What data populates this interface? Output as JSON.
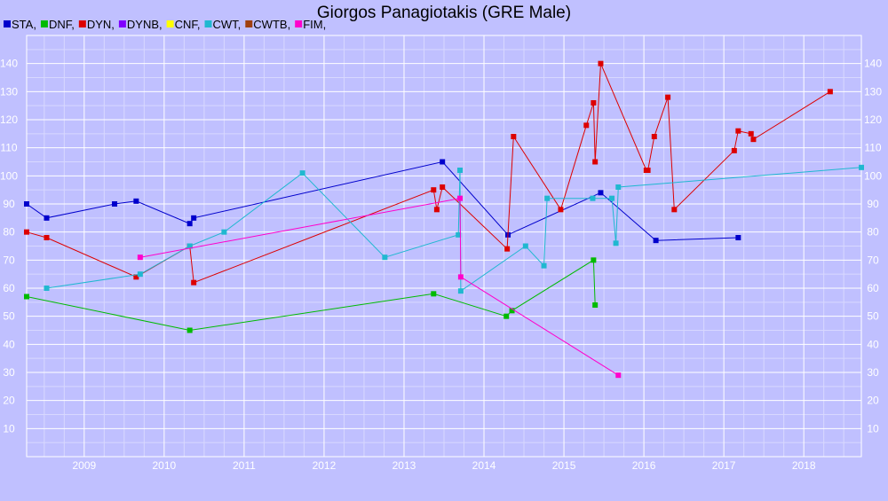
{
  "chart_data": {
    "type": "line",
    "title": "Giorgos Panagiotakis (GRE Male)",
    "xlabel": "",
    "ylabel": "",
    "xlim": [
      2008.28,
      2018.72
    ],
    "ylim": [
      0,
      150
    ],
    "x_ticks": [
      "2009",
      "2010",
      "2011",
      "2012",
      "2013",
      "2014",
      "2015",
      "2016",
      "2017",
      "2018"
    ],
    "y_ticks": [
      "10",
      "20",
      "30",
      "40",
      "50",
      "60",
      "70",
      "80",
      "90",
      "100",
      "110",
      "120",
      "130",
      "140"
    ],
    "grid": true,
    "legend_position": "top-left",
    "background": "#c0c0ff",
    "series": [
      {
        "name": "STA,",
        "color": "#0000cc",
        "x": [
          2008.28,
          2008.53,
          2009.38,
          2009.65,
          2010.32,
          2010.37,
          2013.48,
          2014.3,
          2015.46,
          2016.15,
          2017.18
        ],
        "y": [
          90,
          85,
          90,
          91,
          83,
          85,
          105,
          79,
          94,
          77,
          78
        ]
      },
      {
        "name": "DNF,",
        "color": "#00bb00",
        "x": [
          2008.28,
          2010.32,
          2013.37,
          2014.28,
          2014.35,
          2015.37,
          2015.39
        ],
        "y": [
          57,
          45,
          58,
          50,
          52,
          70,
          54
        ]
      },
      {
        "name": "DYN,",
        "color": "#dd0000",
        "x": [
          2008.28,
          2008.53,
          2009.65,
          2010.32,
          2010.37,
          2013.37,
          2013.41,
          2013.48,
          2014.29,
          2014.37,
          2014.96,
          2015.28,
          2015.37,
          2015.39,
          2015.46,
          2016.03,
          2016.05,
          2016.13,
          2016.3,
          2016.38,
          2017.13,
          2017.18,
          2017.34,
          2017.37,
          2018.33
        ],
        "y": [
          80,
          78,
          64,
          75,
          62,
          95,
          88,
          96,
          74,
          114,
          88,
          118,
          126,
          105,
          140,
          102,
          102,
          114,
          128,
          88,
          109,
          116,
          115,
          113,
          130
        ]
      },
      {
        "name": "DYNB,",
        "color": "#8000ff",
        "x": [],
        "y": []
      },
      {
        "name": "CNF,",
        "color": "#ffff00",
        "x": [],
        "y": []
      },
      {
        "name": "CWT,",
        "color": "#20b8d0",
        "x": [
          2008.53,
          2009.7,
          2010.32,
          2010.75,
          2011.73,
          2012.76,
          2013.68,
          2013.7,
          2013.71,
          2014.52,
          2014.75,
          2014.79,
          2015.36,
          2015.6,
          2015.65,
          2015.68,
          2018.72
        ],
        "y": [
          60,
          65,
          75,
          80,
          101,
          71,
          79,
          102,
          59,
          75,
          68,
          92,
          92,
          92,
          76,
          96,
          103
        ]
      },
      {
        "name": "CWTB,",
        "color": "#a04010",
        "x": [],
        "y": []
      },
      {
        "name": "FIM,",
        "color": "#ff00cc",
        "x": [
          2009.7,
          2013.7,
          2013.71,
          2015.68
        ],
        "y": [
          71,
          92,
          64,
          29
        ]
      }
    ]
  }
}
